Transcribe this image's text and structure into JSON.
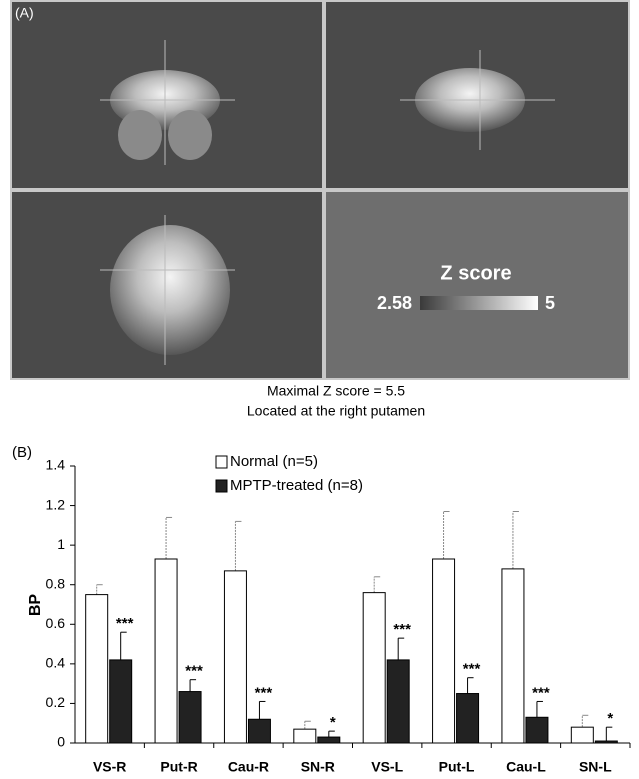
{
  "panel_a": {
    "label": "(A)",
    "colorbar": {
      "title": "Z score",
      "min": 2.58,
      "max": 5
    },
    "caption": [
      "Maximal Z score = 5.5",
      "Located at the right putamen"
    ]
  },
  "chart_data": {
    "type": "bar",
    "panel_label": "(B)",
    "y_label": "BP",
    "categories": [
      "VS-R",
      "Put-R",
      "Cau-R",
      "SN-R",
      "VS-L",
      "Put-L",
      "Cau-L",
      "SN-L"
    ],
    "series": [
      {
        "name": "Normal (n=5)",
        "color": "#ffffff",
        "values": [
          0.75,
          0.93,
          0.87,
          0.07,
          0.76,
          0.93,
          0.88,
          0.08
        ],
        "errors": [
          0.05,
          0.21,
          0.25,
          0.04,
          0.08,
          0.24,
          0.29,
          0.06
        ]
      },
      {
        "name": "MPTP-treated (n=8)",
        "color": "#222222",
        "values": [
          0.42,
          0.26,
          0.12,
          0.03,
          0.42,
          0.25,
          0.13,
          0.01
        ],
        "errors": [
          0.14,
          0.06,
          0.09,
          0.03,
          0.11,
          0.08,
          0.08,
          0.07
        ],
        "significance": [
          "***",
          "***",
          "***",
          "*",
          "***",
          "***",
          "***",
          "*"
        ]
      }
    ],
    "ylim": [
      0,
      1.4
    ],
    "yticks": [
      0,
      0.2,
      0.4,
      0.6,
      0.8,
      1,
      1.2,
      1.4
    ]
  }
}
